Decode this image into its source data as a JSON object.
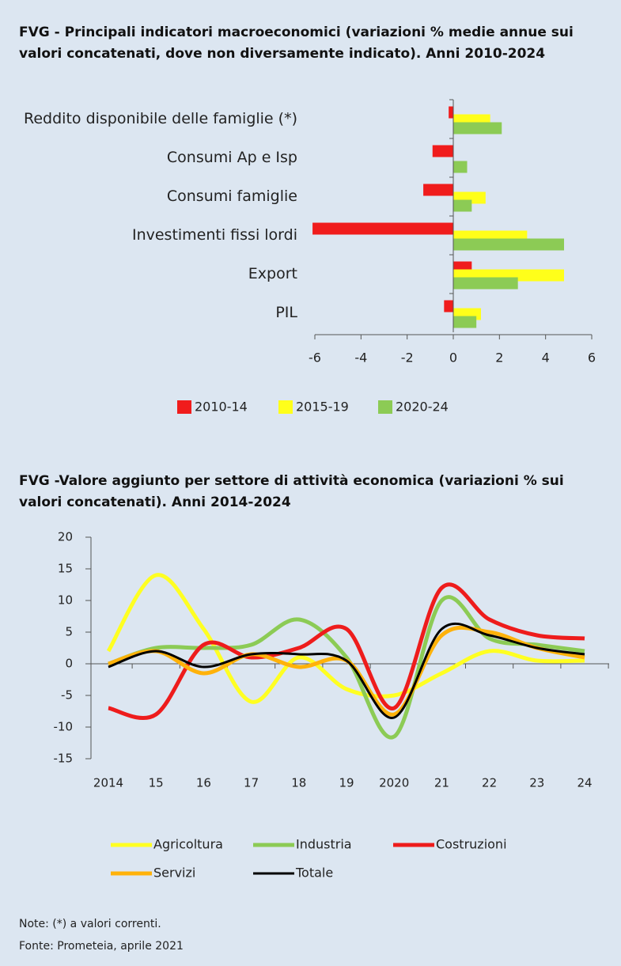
{
  "chart_data": [
    {
      "type": "bar",
      "orientation": "horizontal",
      "title": "FVG - Principali indicatori macroeconomici (variazioni % medie annue sui valori concatenati, dove non diversamente indicato). Anni 2010-2024",
      "categories": [
        "Reddito disponibile delle famiglie (*)",
        "Consumi Ap e Isp",
        "Consumi famiglie",
        "Investimenti fissi lordi",
        "Export",
        "PIL"
      ],
      "series": [
        {
          "name": "2010-14",
          "color": "#f01c1c",
          "values": [
            -0.2,
            -0.9,
            -1.3,
            -6.1,
            0.8,
            -0.4
          ]
        },
        {
          "name": "2015-19",
          "color": "#ffff1a",
          "values": [
            1.6,
            0.0,
            1.4,
            3.2,
            4.8,
            1.2
          ]
        },
        {
          "name": "2020-24",
          "color": "#8ccb55",
          "values": [
            2.1,
            0.6,
            0.8,
            4.8,
            2.8,
            1.0
          ]
        }
      ],
      "xlim": [
        -6,
        6
      ],
      "xticks": [
        -6,
        -4,
        -2,
        0,
        2,
        4,
        6
      ],
      "legend": "bottom"
    },
    {
      "type": "line",
      "title": "FVG -Valore aggiunto per settore di attività economica (variazioni % sui valori concatenati). Anni 2014-2024",
      "categories": [
        "2014",
        "15",
        "16",
        "17",
        "18",
        "19",
        "2020",
        "21",
        "22",
        "23",
        "24"
      ],
      "series": [
        {
          "name": "Agricoltura",
          "color": "#ffff22",
          "values": [
            2,
            14,
            5.5,
            -6,
            1,
            -4,
            -5,
            -1.5,
            2,
            0.5,
            0.5
          ]
        },
        {
          "name": "Industria",
          "color": "#8ccb55",
          "values": [
            0,
            2.5,
            2.5,
            3,
            7,
            1,
            -11.5,
            10,
            4,
            3,
            2
          ]
        },
        {
          "name": "Costruzioni",
          "color": "#ee1c1c",
          "values": [
            -7,
            -8,
            3,
            1,
            2.5,
            5.5,
            -7,
            12,
            7,
            4.5,
            4
          ]
        },
        {
          "name": "Servizi",
          "color": "#ffb20a",
          "values": [
            0,
            2,
            -1.5,
            1.5,
            -0.5,
            0.5,
            -8,
            4.5,
            5,
            2.5,
            1
          ]
        },
        {
          "name": "Totale",
          "color": "#000000",
          "values": [
            -0.5,
            2,
            -0.5,
            1.5,
            1.5,
            0.5,
            -8.5,
            5.5,
            4.5,
            2.5,
            1.5
          ]
        }
      ],
      "ylim": [
        -15,
        20
      ],
      "yticks": [
        -15,
        -10,
        -5,
        0,
        5,
        10,
        15,
        20
      ],
      "legend": "bottom"
    }
  ],
  "notes": [
    "Note: (*) a valori correnti.",
    "Fonte: Prometeia, aprile 2021"
  ]
}
